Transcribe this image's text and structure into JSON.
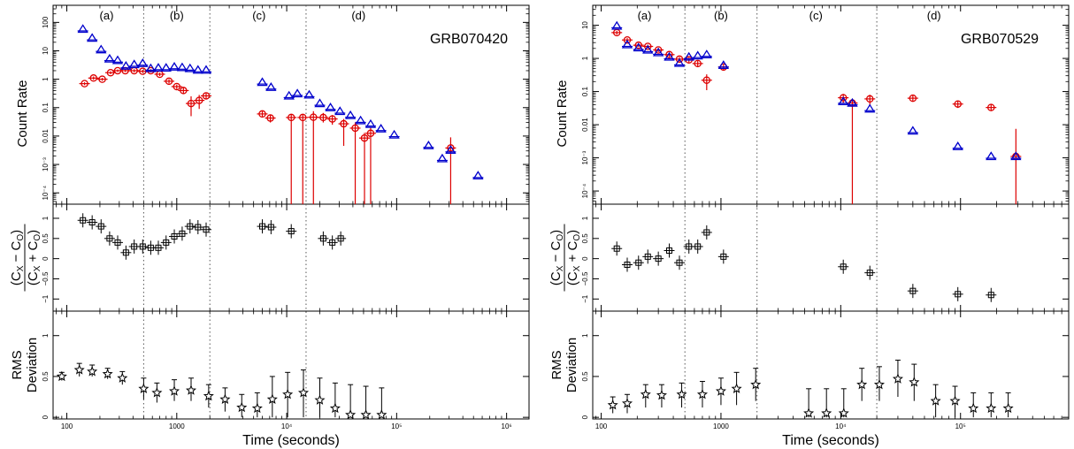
{
  "figure": {
    "x_label": "Time (seconds)",
    "panel_ylabels": {
      "count_rate": "Count Rate",
      "hardness_num": "(C",
      "hardness": [
        "(C",
        "X",
        " − C",
        "O",
        ")",
        "(C",
        "X",
        " + C",
        "O",
        ")"
      ],
      "rms": [
        "RMS",
        "Deviation"
      ]
    },
    "segment_labels": [
      "(a)",
      "(b)",
      "(c)",
      "(d)"
    ]
  },
  "colors": {
    "hard": "#0000cc",
    "soft": "#dd0000",
    "ratio": "#000000"
  },
  "chart_data": [
    {
      "type": "scatter",
      "title": "GRB070420",
      "xlabel": "Time (seconds)",
      "x_scale": "log",
      "xlim": [
        75,
        1600000
      ],
      "x_ticks": [
        100,
        1000,
        10000,
        100000,
        1000000
      ],
      "x_tick_labels": [
        "100",
        "1000",
        "10⁴",
        "10⁵",
        "10⁶"
      ],
      "segment_boundaries": [
        500,
        2000,
        15000
      ],
      "segment_labels": [
        "(a)",
        "(b)",
        "(c)",
        "(d)"
      ],
      "count_rate": {
        "ylabel": "Count Rate",
        "y_scale": "log",
        "ylim": [
          4e-05,
          400
        ],
        "y_ticks": [
          0.0001,
          0.001,
          0.01,
          0.1,
          1,
          10,
          100
        ],
        "y_tick_labels": [
          "10⁻⁴",
          "10⁻³",
          "0.01",
          "0.1",
          "1",
          "10",
          "100"
        ],
        "series": [
          {
            "name": "triangles (blue)",
            "marker": "triangle",
            "points": [
              [
                140,
                58
              ],
              [
                170,
                28
              ],
              [
                205,
                11
              ],
              [
                245,
                5.2
              ],
              [
                290,
                4.6
              ],
              [
                345,
                2.9
              ],
              [
                410,
                3.3
              ],
              [
                490,
                3.6
              ],
              [
                580,
                2.4
              ],
              [
                680,
                2.5
              ],
              [
                800,
                2.5
              ],
              [
                950,
                2.7
              ],
              [
                1120,
                2.6
              ],
              [
                1320,
                2.4
              ],
              [
                1560,
                2.1
              ],
              [
                1850,
                2.1
              ],
              [
                6000,
                0.78
              ],
              [
                7200,
                0.52
              ],
              [
                10500,
                0.26
              ],
              [
                12500,
                0.31
              ],
              [
                16000,
                0.28
              ],
              [
                20000,
                0.14
              ],
              [
                25000,
                0.1
              ],
              [
                30500,
                0.074
              ],
              [
                38000,
                0.053
              ],
              [
                47000,
                0.035
              ],
              [
                58000,
                0.026
              ],
              [
                72000,
                0.018
              ],
              [
                95000,
                0.011
              ],
              [
                195000,
                0.0046
              ],
              [
                260000,
                0.0016
              ],
              [
                310000,
                0.0032
              ],
              [
                550000,
                0.0004
              ]
            ]
          },
          {
            "name": "circles (red)",
            "marker": "circle",
            "points": [
              [
                145,
                0.7,
                0.62,
                0.78
              ],
              [
                175,
                1.1,
                0.95,
                1.25
              ],
              [
                210,
                1.0,
                0.88,
                1.12
              ],
              [
                250,
                1.7,
                1.5,
                1.9
              ],
              [
                290,
                2.0,
                1.8,
                2.2
              ],
              [
                340,
                2.0,
                1.8,
                2.2
              ],
              [
                410,
                2.0,
                1.75,
                2.25
              ],
              [
                490,
                1.9,
                1.65,
                2.15
              ],
              [
                580,
                2.0,
                1.75,
                2.25
              ],
              [
                700,
                1.5,
                1.3,
                1.7
              ],
              [
                850,
                0.85,
                0.7,
                1.0
              ],
              [
                1000,
                0.55,
                0.45,
                0.65
              ],
              [
                1150,
                0.4,
                0.3,
                0.5
              ],
              [
                1350,
                0.14,
                0.05,
                0.25
              ],
              [
                1600,
                0.18,
                0.09,
                0.28
              ],
              [
                1850,
                0.26,
                0.2,
                0.32
              ],
              [
                6000,
                0.06,
                0.045,
                0.075
              ],
              [
                7100,
                0.043,
                0.03,
                0.055
              ],
              [
                11000,
                0.045,
                4e-05,
                0.06
              ],
              [
                14000,
                0.045,
                4e-05,
                0.06
              ],
              [
                17500,
                0.046,
                4e-05,
                0.075
              ],
              [
                21500,
                0.045,
                0.03,
                0.065
              ],
              [
                26000,
                0.04,
                0.025,
                0.055
              ],
              [
                33000,
                0.027,
                0.0045,
                0.04
              ],
              [
                42000,
                0.019,
                4e-05,
                0.03
              ],
              [
                51000,
                0.0085,
                4e-05,
                0.013
              ],
              [
                58000,
                0.0125,
                4e-05,
                0.02
              ],
              [
                310000,
                0.0038,
                4e-05,
                0.009
              ]
            ]
          }
        ]
      },
      "hardness": {
        "ylim": [
          -1.3,
          1.35
        ],
        "y_ticks": [
          -1,
          -0.5,
          0,
          0.5,
          1
        ],
        "y_tick_labels": [
          "−1",
          "−0.5",
          "0",
          "0.5",
          "1"
        ],
        "points": [
          [
            140,
            0.95
          ],
          [
            170,
            0.9
          ],
          [
            205,
            0.8
          ],
          [
            245,
            0.5
          ],
          [
            290,
            0.4
          ],
          [
            345,
            0.15
          ],
          [
            410,
            0.3
          ],
          [
            490,
            0.3
          ],
          [
            580,
            0.27
          ],
          [
            680,
            0.27
          ],
          [
            800,
            0.4
          ],
          [
            950,
            0.55
          ],
          [
            1120,
            0.62
          ],
          [
            1320,
            0.8
          ],
          [
            1560,
            0.78
          ],
          [
            1850,
            0.72
          ],
          [
            6000,
            0.8
          ],
          [
            7200,
            0.78
          ],
          [
            11000,
            0.68
          ],
          [
            21500,
            0.5
          ],
          [
            26000,
            0.4
          ],
          [
            31000,
            0.5
          ]
        ]
      },
      "rms": {
        "ylim": [
          -0.02,
          1.3
        ],
        "y_ticks": [
          0,
          0.5,
          1
        ],
        "y_tick_labels": [
          "0",
          "0.5",
          "1"
        ],
        "points": [
          [
            90,
            0.5,
            0.45,
            0.55
          ],
          [
            130,
            0.58,
            0.5,
            0.66
          ],
          [
            170,
            0.56,
            0.5,
            0.64
          ],
          [
            235,
            0.53,
            0.47,
            0.6
          ],
          [
            320,
            0.48,
            0.4,
            0.56
          ],
          [
            500,
            0.35,
            0.22,
            0.48
          ],
          [
            660,
            0.3,
            0.18,
            0.42
          ],
          [
            950,
            0.32,
            0.2,
            0.46
          ],
          [
            1350,
            0.33,
            0.2,
            0.48
          ],
          [
            1950,
            0.26,
            0.12,
            0.4
          ],
          [
            2750,
            0.22,
            0.07,
            0.36
          ],
          [
            3900,
            0.12,
            0.0,
            0.28
          ],
          [
            5400,
            0.11,
            0.0,
            0.3
          ],
          [
            7400,
            0.22,
            0.0,
            0.5
          ],
          [
            10200,
            0.28,
            0.0,
            0.55
          ],
          [
            14200,
            0.3,
            0.0,
            0.58
          ],
          [
            20000,
            0.21,
            0.0,
            0.48
          ],
          [
            27600,
            0.11,
            0.0,
            0.42
          ],
          [
            38000,
            0.03,
            0.0,
            0.4
          ],
          [
            52500,
            0.03,
            0.0,
            0.38
          ],
          [
            73000,
            0.03,
            0.0,
            0.36
          ]
        ]
      }
    },
    {
      "type": "scatter",
      "title": "GRB070529",
      "xlabel": "Time (seconds)",
      "x_scale": "log",
      "xlim": [
        85,
        800000
      ],
      "x_ticks": [
        100,
        1000,
        10000,
        100000
      ],
      "x_tick_labels": [
        "100",
        "1000",
        "10⁴",
        "10⁵"
      ],
      "segment_boundaries": [
        500,
        2000,
        20000
      ],
      "segment_labels": [
        "(a)",
        "(b)",
        "(c)",
        "(d)"
      ],
      "count_rate": {
        "ylabel": "Count Rate",
        "y_scale": "log",
        "ylim": [
          4e-05,
          40
        ],
        "y_ticks": [
          0.0001,
          0.001,
          0.01,
          0.1,
          1,
          10
        ],
        "y_tick_labels": [
          "10⁻⁴",
          "10⁻³",
          "0.01",
          "0.1",
          "1",
          "10"
        ],
        "series": [
          {
            "name": "triangles (blue)",
            "marker": "triangle",
            "points": [
              [
                135,
                9.5
              ],
              [
                165,
                2.6
              ],
              [
                205,
                2.1
              ],
              [
                245,
                1.8
              ],
              [
                300,
                1.5
              ],
              [
                370,
                1.1
              ],
              [
                450,
                0.72
              ],
              [
                540,
                1.1
              ],
              [
                640,
                1.2
              ],
              [
                760,
                1.3
              ],
              [
                1050,
                0.62
              ],
              [
                10500,
                0.05
              ],
              [
                12500,
                0.045
              ],
              [
                17500,
                0.03
              ],
              [
                40000,
                0.0065
              ],
              [
                95000,
                0.0022
              ],
              [
                180000,
                0.0011
              ],
              [
                290000,
                0.0011
              ]
            ]
          },
          {
            "name": "circles (red)",
            "marker": "circle",
            "points": [
              [
                135,
                6.0,
                5.2,
                6.8
              ],
              [
                165,
                3.6,
                3.1,
                4.1
              ],
              [
                205,
                2.5,
                2.2,
                2.8
              ],
              [
                245,
                2.3,
                2.0,
                2.6
              ],
              [
                300,
                1.8,
                1.55,
                2.05
              ],
              [
                370,
                1.3,
                1.1,
                1.5
              ],
              [
                450,
                0.95,
                0.8,
                1.1
              ],
              [
                540,
                0.9,
                0.75,
                1.05
              ],
              [
                640,
                0.7,
                0.55,
                0.85
              ],
              [
                760,
                0.22,
                0.11,
                0.33
              ],
              [
                1050,
                0.55,
                0.45,
                0.65
              ],
              [
                10500,
                0.065,
                0.045,
                0.085
              ],
              [
                12500,
                0.045,
                4e-05,
                0.06
              ],
              [
                17500,
                0.06,
                0.04,
                0.08
              ],
              [
                40000,
                0.063,
                0.05,
                0.076
              ],
              [
                95000,
                0.042,
                0.032,
                0.052
              ],
              [
                180000,
                0.033,
                0.026,
                0.04
              ],
              [
                290000,
                0.0011,
                4e-05,
                0.0075
              ]
            ]
          }
        ]
      },
      "hardness": {
        "ylim": [
          -1.3,
          1.35
        ],
        "y_ticks": [
          -1,
          -0.5,
          0,
          0.5,
          1
        ],
        "y_tick_labels": [
          "−1",
          "−0.5",
          "0",
          "0.5",
          "1"
        ],
        "points": [
          [
            135,
            0.25
          ],
          [
            165,
            -0.15
          ],
          [
            205,
            -0.1
          ],
          [
            245,
            0.05
          ],
          [
            300,
            0.0
          ],
          [
            370,
            0.2
          ],
          [
            450,
            -0.1
          ],
          [
            540,
            0.3
          ],
          [
            640,
            0.3
          ],
          [
            760,
            0.65
          ],
          [
            1050,
            0.05
          ],
          [
            10500,
            -0.2
          ],
          [
            17500,
            -0.35
          ],
          [
            40000,
            -0.8
          ],
          [
            95000,
            -0.88
          ],
          [
            180000,
            -0.9
          ]
        ]
      },
      "rms": {
        "ylim": [
          -0.02,
          1.3
        ],
        "y_ticks": [
          0,
          0.5,
          1
        ],
        "y_tick_labels": [
          "0",
          "0.5",
          "1"
        ],
        "points": [
          [
            125,
            0.15,
            0.05,
            0.25
          ],
          [
            165,
            0.17,
            0.05,
            0.28
          ],
          [
            235,
            0.28,
            0.12,
            0.4
          ],
          [
            320,
            0.27,
            0.12,
            0.4
          ],
          [
            470,
            0.28,
            0.12,
            0.42
          ],
          [
            700,
            0.28,
            0.12,
            0.44
          ],
          [
            1000,
            0.32,
            0.15,
            0.48
          ],
          [
            1350,
            0.35,
            0.15,
            0.55
          ],
          [
            1950,
            0.4,
            0.2,
            0.6
          ],
          [
            5400,
            0.05,
            0.0,
            0.35
          ],
          [
            7600,
            0.05,
            0.0,
            0.35
          ],
          [
            10600,
            0.05,
            0.0,
            0.35
          ],
          [
            15000,
            0.4,
            0.2,
            0.6
          ],
          [
            21000,
            0.4,
            0.2,
            0.62
          ],
          [
            30000,
            0.47,
            0.25,
            0.7
          ],
          [
            41000,
            0.43,
            0.2,
            0.65
          ],
          [
            62000,
            0.2,
            0.0,
            0.4
          ],
          [
            90000,
            0.2,
            0.0,
            0.38
          ],
          [
            128000,
            0.11,
            0.0,
            0.3
          ],
          [
            180000,
            0.11,
            0.0,
            0.3
          ],
          [
            250000,
            0.11,
            0.0,
            0.3
          ]
        ]
      }
    }
  ]
}
